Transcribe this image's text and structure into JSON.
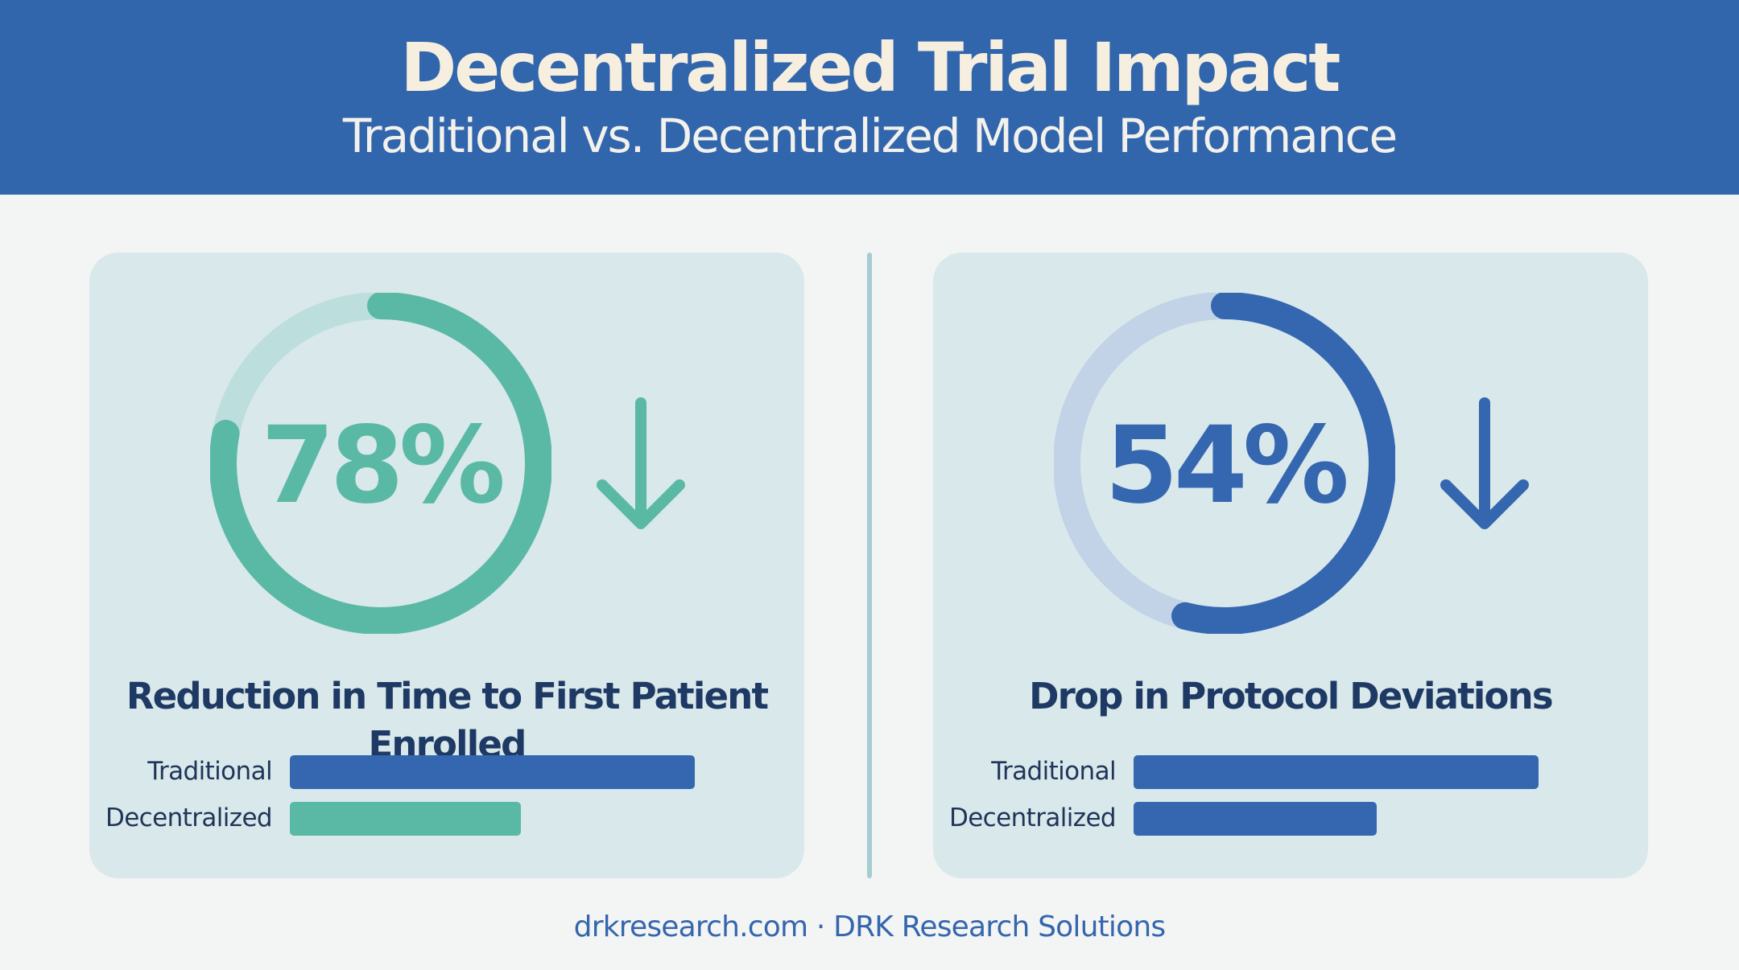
{
  "header": {
    "title": "Decentralized Trial Impact",
    "subtitle": "Traditional vs. Decentralized Model Performance"
  },
  "colors": {
    "header_bg": "#3266ac",
    "teal": "#5ab9a5",
    "teal_track": "#bcdedc",
    "blue": "#3467b0",
    "blue_track": "#c2d2e7",
    "panel_bg": "#d9e8ea",
    "text_dark": "#1e3a64"
  },
  "chart_data": [
    {
      "type": "bar",
      "metric": "Reduction in Time to First Patient Enrolled",
      "percent": 78,
      "percent_label": "78%",
      "direction": "down",
      "ring_color": "teal",
      "categories": [
        "Traditional",
        "Decentralized"
      ],
      "values": [
        1.0,
        0.57
      ],
      "bar_colors": [
        "blue",
        "teal"
      ]
    },
    {
      "type": "bar",
      "metric": "Drop in Protocol Deviations",
      "percent": 54,
      "percent_label": "54%",
      "direction": "down",
      "ring_color": "blue",
      "categories": [
        "Traditional",
        "Decentralized"
      ],
      "values": [
        1.0,
        0.6
      ],
      "bar_colors": [
        "blue",
        "blue"
      ]
    }
  ],
  "footer": {
    "text": "drkresearch.com · DRK Research Solutions"
  }
}
